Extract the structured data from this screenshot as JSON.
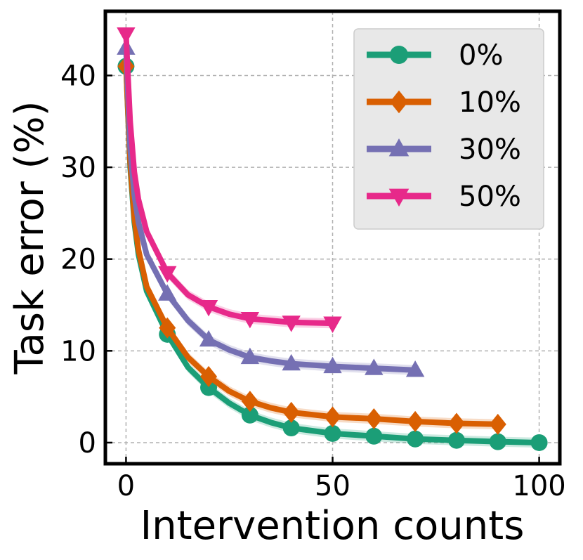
{
  "chart_data": {
    "type": "line",
    "title": "",
    "xlabel": "Intervention counts",
    "ylabel": "Task error (%)",
    "xlim": [
      -5,
      105
    ],
    "ylim": [
      -2.3,
      47
    ],
    "xticks": [
      0,
      50,
      100
    ],
    "yticks": [
      0,
      10,
      20,
      30,
      40
    ],
    "grid": true,
    "legend_position": "top-right",
    "series": [
      {
        "name": "0%",
        "color": "#1b9e77",
        "marker": "circle",
        "x": [
          0,
          10,
          20,
          30,
          40,
          50,
          60,
          70,
          80,
          90,
          100
        ],
        "y": [
          41,
          11.8,
          6.0,
          3.0,
          1.6,
          1.0,
          0.7,
          0.4,
          0.25,
          0.1,
          0.0
        ],
        "curve_x": [
          0,
          1,
          2,
          3,
          5,
          10,
          15,
          20,
          25,
          30,
          35,
          40,
          50,
          60,
          70,
          80,
          90,
          100
        ],
        "curve_y": [
          41,
          30,
          24,
          20.5,
          16.5,
          11.8,
          8.2,
          6.0,
          4.3,
          3.0,
          2.2,
          1.6,
          1.0,
          0.7,
          0.4,
          0.25,
          0.1,
          0.0
        ]
      },
      {
        "name": "10%",
        "color": "#d95f02",
        "marker": "diamond",
        "x": [
          0,
          10,
          20,
          30,
          40,
          50,
          60,
          70,
          80,
          90
        ],
        "y": [
          41,
          12.5,
          7.2,
          4.5,
          3.3,
          2.8,
          2.6,
          2.3,
          2.1,
          2.0
        ],
        "curve_x": [
          0,
          1,
          2,
          3,
          5,
          10,
          15,
          20,
          25,
          30,
          35,
          40,
          50,
          60,
          70,
          80,
          90
        ],
        "curve_y": [
          41,
          30.5,
          24.5,
          21,
          17,
          12.5,
          9.3,
          7.2,
          5.6,
          4.5,
          3.8,
          3.3,
          2.8,
          2.6,
          2.3,
          2.1,
          2.0
        ]
      },
      {
        "name": "30%",
        "color": "#7570b3",
        "marker": "triangle-up",
        "x": [
          0,
          10,
          20,
          30,
          40,
          50,
          60,
          70
        ],
        "y": [
          43,
          16.2,
          11.2,
          9.3,
          8.6,
          8.3,
          8.1,
          7.9
        ],
        "curve_x": [
          0,
          1,
          2,
          3,
          5,
          10,
          15,
          20,
          25,
          30,
          35,
          40,
          50,
          60,
          70
        ],
        "curve_y": [
          43,
          32,
          27,
          24,
          20.5,
          16.2,
          13.3,
          11.2,
          10.1,
          9.3,
          8.9,
          8.6,
          8.3,
          8.1,
          7.9
        ]
      },
      {
        "name": "50%",
        "color": "#e7298a",
        "marker": "triangle-down",
        "x": [
          0,
          10,
          20,
          30,
          40,
          50
        ],
        "y": [
          44.5,
          18.5,
          14.8,
          13.5,
          13.1,
          13.0
        ],
        "curve_x": [
          0,
          1,
          2,
          3,
          5,
          10,
          15,
          20,
          25,
          30,
          40,
          50
        ],
        "curve_y": [
          44.5,
          35,
          29.5,
          26.5,
          23,
          18.5,
          16.1,
          14.8,
          14.0,
          13.5,
          13.1,
          13.0
        ]
      }
    ]
  }
}
